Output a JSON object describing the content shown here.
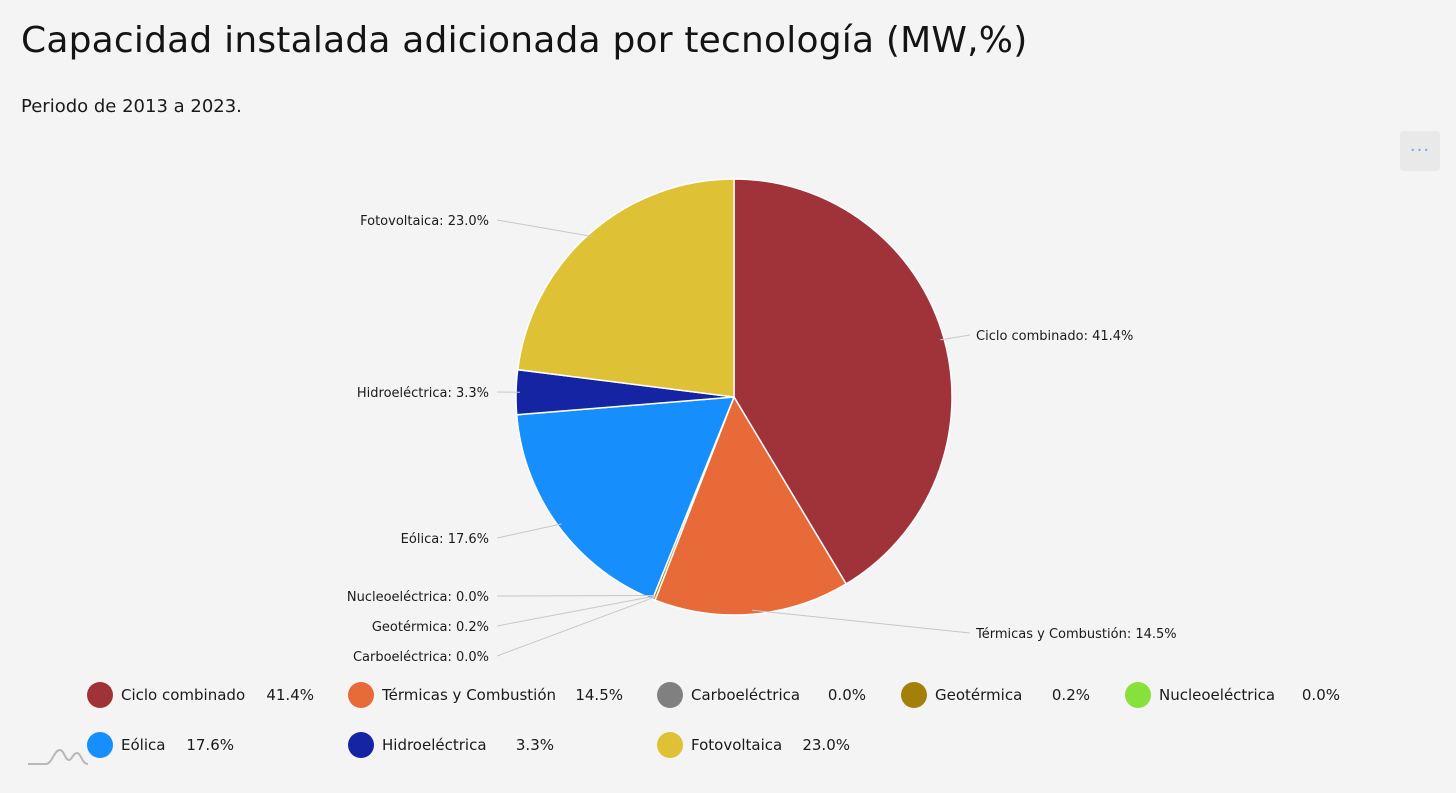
{
  "title": "Capacidad instalada adicionada por tecnología (MW,%)",
  "subtitle": "Periodo de 2013 a 2023.",
  "menu": {
    "icon": "ellipsis-icon",
    "label": "···"
  },
  "chart_data": {
    "type": "pie",
    "title": "Capacidad instalada adicionada por tecnología (MW,%)",
    "subtitle": "Periodo de 2013 a 2023.",
    "slices": [
      {
        "name": "Ciclo combinado",
        "value": 41.4,
        "label": "Ciclo combinado: 41.4%",
        "legend_value": "41.4%",
        "color": "#a0323a"
      },
      {
        "name": "Térmicas y Combustión",
        "value": 14.5,
        "label": "Térmicas y Combustión: 14.5%",
        "legend_value": "14.5%",
        "color": "#e86a38"
      },
      {
        "name": "Carboeléctrica",
        "value": 0.0,
        "label": "Carboeléctrica: 0.0%",
        "legend_value": "0.0%",
        "color": "#808080"
      },
      {
        "name": "Geotérmica",
        "value": 0.2,
        "label": "Geotérmica: 0.2%",
        "legend_value": "0.2%",
        "color": "#a3800a"
      },
      {
        "name": "Nucleoeléctrica",
        "value": 0.0,
        "label": "Nucleoeléctrica: 0.0%",
        "legend_value": "0.0%",
        "color": "#88e03a"
      },
      {
        "name": "Eólica",
        "value": 17.6,
        "label": "Eólica: 17.6%",
        "legend_value": "17.6%",
        "color": "#168ffc"
      },
      {
        "name": "Hidroeléctrica",
        "value": 3.3,
        "label": "Hidroeléctrica: 3.3%",
        "legend_value": "3.3%",
        "color": "#1524a3"
      },
      {
        "name": "Fotovoltaica",
        "value": 23.0,
        "label": "Fotovoltaica: 23.0%",
        "legend_value": "23.0%",
        "color": "#dfc135"
      }
    ],
    "legend": "bottom"
  }
}
